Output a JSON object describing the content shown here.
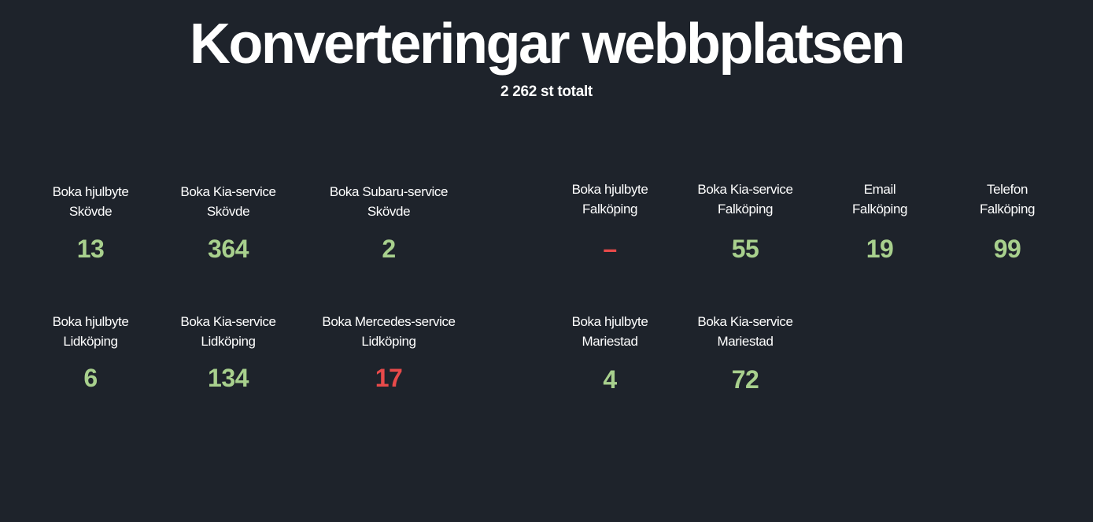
{
  "header": {
    "title": "Konverteringar webbplatsen",
    "subtitle": "2 262 st totalt"
  },
  "colors": {
    "background": "#1e232b",
    "good": "#a8d08d",
    "bad": "#e84a4a"
  },
  "kpis": [
    {
      "line1": "Boka hjulbyte",
      "line2": "Skövde",
      "value": "13",
      "status": "good"
    },
    {
      "line1": "Boka Kia-service",
      "line2": "Skövde",
      "value": "364",
      "status": "good"
    },
    {
      "line1": "Boka Subaru-service",
      "line2": "Skövde",
      "value": "2",
      "status": "good"
    },
    {
      "line1": "Boka hjulbyte",
      "line2": "Falköping",
      "value": "–",
      "status": "bad"
    },
    {
      "line1": "Boka Kia-service",
      "line2": "Falköping",
      "value": "55",
      "status": "good"
    },
    {
      "line1": "Email",
      "line2": "Falköping",
      "value": "19",
      "status": "good"
    },
    {
      "line1": "Telefon",
      "line2": "Falköping",
      "value": "99",
      "status": "good"
    },
    {
      "line1": "Boka hjulbyte",
      "line2": "Lidköping",
      "value": "6",
      "status": "good"
    },
    {
      "line1": "Boka Kia-service",
      "line2": "Lidköping",
      "value": "134",
      "status": "good"
    },
    {
      "line1": "Boka Mercedes-service",
      "line2": "Lidköping",
      "value": "17",
      "status": "bad"
    },
    {
      "line1": "Boka hjulbyte",
      "line2": "Mariestad",
      "value": "4",
      "status": "good"
    },
    {
      "line1": "Boka Kia-service",
      "line2": "Mariestad",
      "value": "72",
      "status": "good"
    }
  ]
}
